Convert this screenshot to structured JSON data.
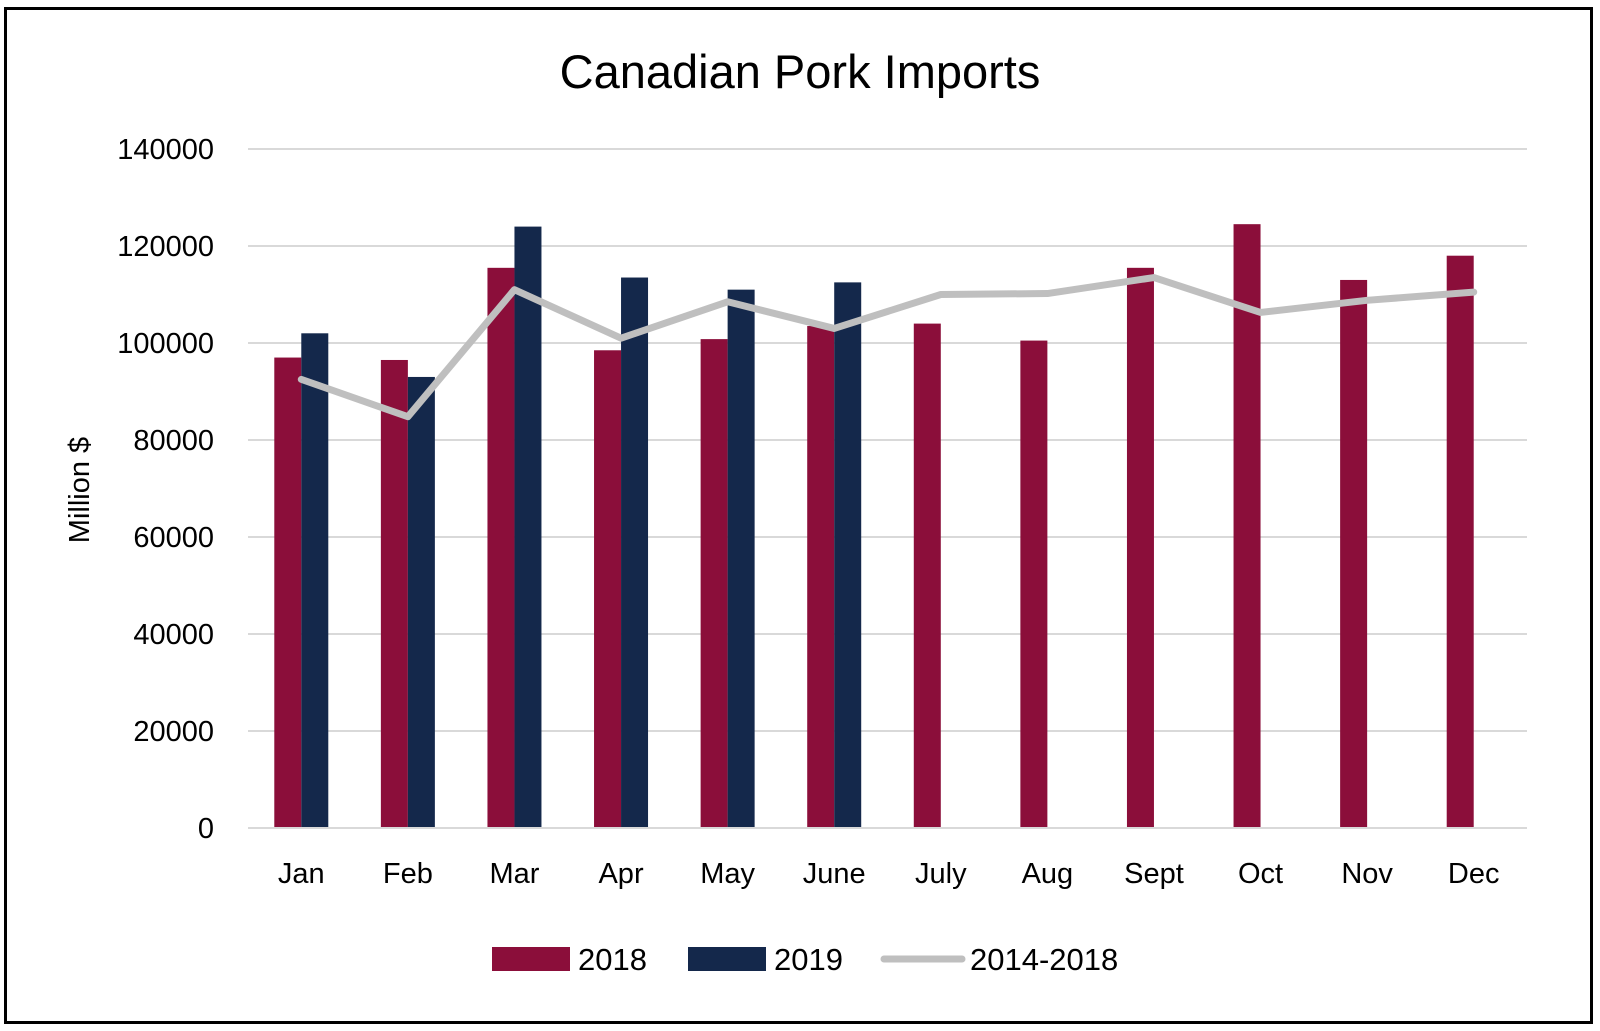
{
  "chart_data": {
    "type": "bar",
    "title": "Canadian Pork Imports",
    "xlabel": "",
    "ylabel": "Million $",
    "categories": [
      "Jan",
      "Feb",
      "Mar",
      "Apr",
      "May",
      "June",
      "July",
      "Aug",
      "Sept",
      "Oct",
      "Nov",
      "Dec"
    ],
    "ylim": [
      0,
      140000
    ],
    "yticks": [
      "0",
      "20000",
      "40000",
      "60000",
      "80000",
      "100000",
      "120000",
      "140000"
    ],
    "grid": true,
    "legend_position": "bottom",
    "series": [
      {
        "name": "2018",
        "type": "bar",
        "color": "#8B0E3A",
        "values": [
          97000,
          96500,
          115500,
          98500,
          100800,
          103500,
          104000,
          100500,
          115500,
          124500,
          113000,
          118000
        ]
      },
      {
        "name": "2019",
        "type": "bar",
        "color": "#14284B",
        "values": [
          102000,
          93000,
          124000,
          113500,
          111000,
          112500,
          null,
          null,
          null,
          null,
          null,
          null
        ]
      },
      {
        "name": "2014-2018",
        "type": "line",
        "color": "#BFBFBF",
        "values": [
          92500,
          84800,
          111000,
          101000,
          108500,
          103000,
          110000,
          110200,
          113500,
          106300,
          108800,
          110500
        ]
      }
    ]
  }
}
